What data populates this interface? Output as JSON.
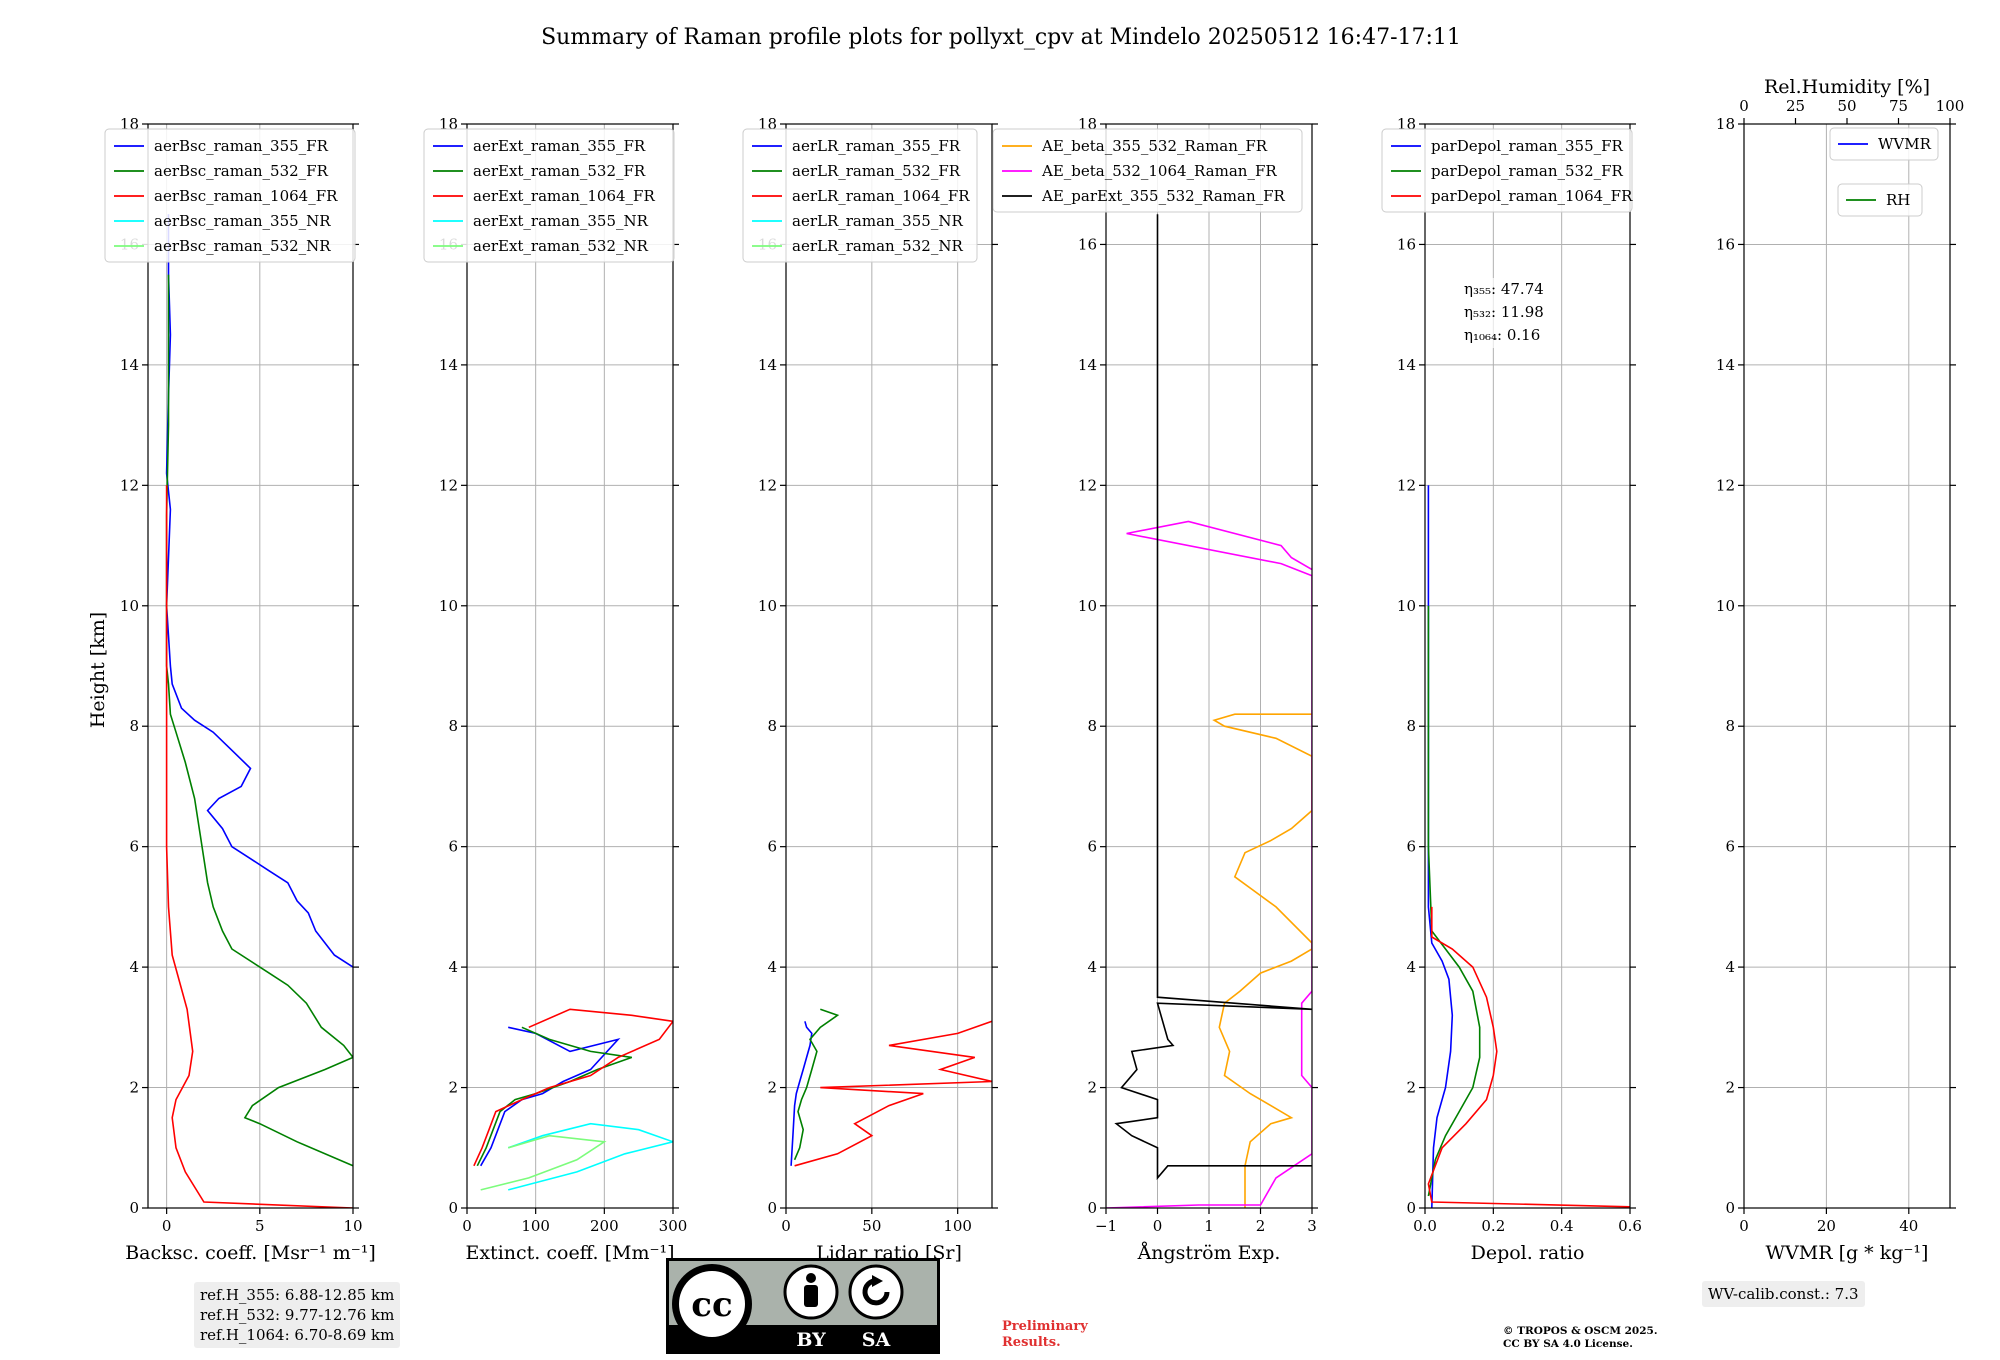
{
  "title": "Summary of Raman profile plots for pollyxt_cpv at Mindelo 20250512 16:47-17:11",
  "ylabel": "Height [km]",
  "y_ticks": [
    "0",
    "2",
    "4",
    "6",
    "8",
    "10",
    "12",
    "14",
    "16",
    "18"
  ],
  "panels": [
    {
      "id": "bsc",
      "xlabel": "Backsc. coeff. [Msr⁻¹ m⁻¹]",
      "xlim": [
        -1,
        10
      ],
      "x_ticks": [
        {
          "v": 0,
          "t": "0"
        },
        {
          "v": 5,
          "t": "5"
        },
        {
          "v": 10,
          "t": "10"
        }
      ],
      "legend": [
        {
          "label": "aerBsc_raman_355_FR",
          "color": "#0000ff"
        },
        {
          "label": "aerBsc_raman_532_FR",
          "color": "#008000"
        },
        {
          "label": "aerBsc_raman_1064_FR",
          "color": "#ff0000"
        },
        {
          "label": "aerBsc_raman_355_NR",
          "color": "#00ffff"
        },
        {
          "label": "aerBsc_raman_532_NR",
          "color": "#7cfc7c"
        }
      ]
    },
    {
      "id": "ext",
      "xlabel": "Extinct. coeff. [Mm⁻¹]",
      "xlim": [
        0,
        300
      ],
      "x_ticks": [
        {
          "v": 0,
          "t": "0"
        },
        {
          "v": 100,
          "t": "100"
        },
        {
          "v": 200,
          "t": "200"
        },
        {
          "v": 300,
          "t": "300"
        }
      ],
      "legend": [
        {
          "label": "aerExt_raman_355_FR",
          "color": "#0000ff"
        },
        {
          "label": "aerExt_raman_532_FR",
          "color": "#008000"
        },
        {
          "label": "aerExt_raman_1064_FR",
          "color": "#ff0000"
        },
        {
          "label": "aerExt_raman_355_NR",
          "color": "#00ffff"
        },
        {
          "label": "aerExt_raman_532_NR",
          "color": "#7cfc7c"
        }
      ]
    },
    {
      "id": "lr",
      "xlabel": "Lidar ratio [Sr]",
      "xlim": [
        0,
        120
      ],
      "x_ticks": [
        {
          "v": 0,
          "t": "0"
        },
        {
          "v": 50,
          "t": "50"
        },
        {
          "v": 100,
          "t": "100"
        }
      ],
      "legend": [
        {
          "label": "aerLR_raman_355_FR",
          "color": "#0000ff"
        },
        {
          "label": "aerLR_raman_532_FR",
          "color": "#008000"
        },
        {
          "label": "aerLR_raman_1064_FR",
          "color": "#ff0000"
        },
        {
          "label": "aerLR_raman_355_NR",
          "color": "#00ffff"
        },
        {
          "label": "aerLR_raman_532_NR",
          "color": "#7cfc7c"
        }
      ]
    },
    {
      "id": "ae",
      "xlabel": "Ångström Exp.",
      "xlim": [
        -1,
        3
      ],
      "x_ticks": [
        {
          "v": -1,
          "t": "−1"
        },
        {
          "v": 0,
          "t": "0"
        },
        {
          "v": 1,
          "t": "1"
        },
        {
          "v": 2,
          "t": "2"
        },
        {
          "v": 3,
          "t": "3"
        }
      ],
      "legend": [
        {
          "label": "AE_beta_355_532_Raman_FR",
          "color": "#ffa500"
        },
        {
          "label": "AE_beta_532_1064_Raman_FR",
          "color": "#ff00ff"
        },
        {
          "label": "AE_parExt_355_532_Raman_FR",
          "color": "#000000"
        }
      ]
    },
    {
      "id": "dep",
      "xlabel": "Depol. ratio",
      "xlim": [
        0,
        0.6
      ],
      "x_ticks": [
        {
          "v": 0,
          "t": "0.0"
        },
        {
          "v": 0.2,
          "t": "0.2"
        },
        {
          "v": 0.4,
          "t": "0.4"
        },
        {
          "v": 0.6,
          "t": "0.6"
        }
      ],
      "legend": [
        {
          "label": "parDepol_raman_355_FR",
          "color": "#0000ff"
        },
        {
          "label": "parDepol_raman_532_FR",
          "color": "#008000"
        },
        {
          "label": "parDepol_raman_1064_FR",
          "color": "#ff0000"
        }
      ]
    },
    {
      "id": "wv",
      "xlabel": "WVMR [g * kg⁻¹]",
      "xlim": [
        0,
        50
      ],
      "x_ticks": [
        {
          "v": 0,
          "t": "0"
        },
        {
          "v": 20,
          "t": "20"
        },
        {
          "v": 40,
          "t": "40"
        }
      ],
      "top_label": "Rel.Humidity [%]",
      "top_ticks": [
        "0",
        "25",
        "50",
        "75",
        "100"
      ],
      "legend": [
        {
          "label": "WVMR",
          "color": "#0000ff"
        },
        {
          "label": "RH",
          "color": "#008000"
        }
      ]
    }
  ],
  "eta_lines": [
    "η₃₅₅: 47.74",
    "η₅₃₂: 11.98",
    "η₁₀₆₄: 0.16"
  ],
  "ref_heights": [
    "ref.H_355: 6.88-12.85 km",
    "ref.H_532: 9.77-12.76 km",
    "ref.H_1064: 6.70-8.69 km"
  ],
  "wv_calib": "WV-calib.const.: 7.3",
  "preliminary": [
    "Preliminary",
    "Results."
  ],
  "copyright": [
    "© TROPOS & OSCM 2025.",
    "CC BY SA 4.0 License."
  ],
  "cc_badge": {
    "cc": "cc",
    "by": "BY",
    "sa": "SA"
  },
  "chart_data": [
    {
      "type": "line",
      "panel": "Backscatter",
      "xlabel": "Backsc. coeff. [Msr⁻¹ m⁻¹]",
      "ylabel": "Height [km]",
      "xlim": [
        -1,
        10
      ],
      "ylim": [
        0,
        18
      ],
      "grid": true,
      "legend": "top-left",
      "series": [
        {
          "name": "aerBsc_raman_355_FR",
          "color": "#0000ff",
          "x": [
            10.0,
            9.0,
            8.0,
            7.6,
            7.0,
            6.5,
            5.5,
            4.5,
            3.5,
            3.0,
            2.2,
            2.8,
            4.0,
            4.5,
            3.5,
            2.5,
            1.5,
            0.8,
            0.3,
            0.2,
            0.0,
            0.1,
            0.2,
            0.0,
            0.1,
            0.2,
            0.1,
            0.1
          ],
          "y": [
            4.0,
            4.2,
            4.6,
            4.9,
            5.1,
            5.4,
            5.6,
            5.8,
            6.0,
            6.3,
            6.6,
            6.8,
            7.0,
            7.3,
            7.6,
            7.9,
            8.1,
            8.3,
            8.7,
            9.0,
            10.0,
            10.8,
            11.6,
            12.2,
            13.5,
            14.5,
            15.5,
            16.5
          ]
        },
        {
          "name": "aerBsc_raman_532_FR",
          "color": "#008000",
          "x": [
            10.0,
            7.0,
            5.0,
            4.2,
            4.6,
            6.0,
            8.5,
            10.0,
            9.5,
            8.3,
            7.5,
            6.5,
            5.5,
            3.5,
            3.0,
            2.5,
            2.2,
            2.0,
            1.8,
            1.5,
            1.0,
            0.5,
            0.2,
            0.1,
            0.0,
            0.0,
            0.0,
            0.1,
            0.1
          ],
          "y": [
            0.7,
            1.1,
            1.4,
            1.5,
            1.7,
            2.0,
            2.3,
            2.5,
            2.7,
            3.0,
            3.4,
            3.7,
            3.9,
            4.3,
            4.6,
            5.0,
            5.4,
            5.8,
            6.2,
            6.8,
            7.4,
            7.9,
            8.2,
            8.7,
            9.0,
            10.0,
            11.5,
            13.0,
            15.5
          ]
        },
        {
          "name": "aerBsc_raman_1064_FR",
          "color": "#ff0000",
          "x": [
            10.0,
            2.0,
            1.0,
            0.5,
            0.3,
            0.5,
            1.2,
            1.4,
            1.1,
            0.3,
            0.1,
            0.0,
            0.0,
            0.0,
            0.0,
            0.0
          ],
          "y": [
            0.0,
            0.1,
            0.6,
            1.0,
            1.5,
            1.8,
            2.2,
            2.6,
            3.3,
            4.2,
            5.0,
            6.0,
            7.0,
            8.0,
            10.0,
            12.0
          ]
        }
      ]
    },
    {
      "type": "line",
      "panel": "Extinction",
      "xlabel": "Extinct. coeff. [Mm⁻¹]",
      "ylabel": "Height [km]",
      "xlim": [
        0,
        300
      ],
      "ylim": [
        0,
        18
      ],
      "grid": true,
      "legend": "top-left",
      "series": [
        {
          "name": "aerExt_raman_355_FR",
          "color": "#0000ff",
          "x": [
            20,
            35,
            45,
            55,
            80,
            110,
            140,
            180,
            220,
            150,
            100,
            60
          ],
          "y": [
            0.7,
            1.0,
            1.3,
            1.6,
            1.8,
            1.9,
            2.1,
            2.3,
            2.8,
            2.6,
            2.9,
            3.0
          ]
        },
        {
          "name": "aerExt_raman_532_FR",
          "color": "#008000",
          "x": [
            15,
            28,
            38,
            48,
            70,
            100,
            150,
            190,
            240,
            180,
            120,
            80
          ],
          "y": [
            0.7,
            1.0,
            1.3,
            1.6,
            1.8,
            1.9,
            2.1,
            2.3,
            2.5,
            2.6,
            2.8,
            3.0
          ]
        },
        {
          "name": "aerExt_raman_1064_FR",
          "color": "#ff0000",
          "x": [
            10,
            22,
            32,
            42,
            80,
            120,
            180,
            220,
            280,
            300,
            240,
            150,
            90
          ],
          "y": [
            0.7,
            1.0,
            1.3,
            1.6,
            1.8,
            2.0,
            2.2,
            2.5,
            2.8,
            3.1,
            3.2,
            3.3,
            3.0
          ]
        },
        {
          "name": "aerExt_raman_355_NR",
          "color": "#00ffff",
          "x": [
            60,
            160,
            230,
            300,
            250,
            180,
            110,
            60
          ],
          "y": [
            0.3,
            0.6,
            0.9,
            1.1,
            1.3,
            1.4,
            1.2,
            1.0
          ]
        },
        {
          "name": "aerExt_raman_532_NR",
          "color": "#7cfc7c",
          "x": [
            20,
            90,
            160,
            200,
            120,
            60
          ],
          "y": [
            0.3,
            0.5,
            0.8,
            1.1,
            1.2,
            1.0
          ]
        }
      ]
    },
    {
      "type": "line",
      "panel": "Lidar ratio",
      "xlabel": "Lidar ratio [Sr]",
      "ylabel": "Height [km]",
      "xlim": [
        0,
        120
      ],
      "ylim": [
        0,
        18
      ],
      "grid": true,
      "legend": "top-left",
      "series": [
        {
          "name": "aerLR_raman_355_FR",
          "color": "#0000ff",
          "x": [
            3,
            4,
            5,
            6,
            8,
            10,
            12,
            14,
            15,
            12,
            11
          ],
          "y": [
            0.7,
            1.2,
            1.7,
            1.9,
            2.1,
            2.3,
            2.5,
            2.7,
            2.9,
            3.0,
            3.1
          ]
        },
        {
          "name": "aerLR_raman_532_FR",
          "color": "#008000",
          "x": [
            5,
            8,
            10,
            7,
            9,
            12,
            15,
            18,
            14,
            20,
            30,
            20
          ],
          "y": [
            0.8,
            1.0,
            1.3,
            1.6,
            1.8,
            2.0,
            2.3,
            2.6,
            2.8,
            3.0,
            3.2,
            3.3
          ]
        },
        {
          "name": "aerLR_raman_1064_FR",
          "color": "#ff0000",
          "x": [
            5,
            30,
            50,
            40,
            60,
            80,
            20,
            120,
            90,
            110,
            60,
            100,
            120
          ],
          "y": [
            0.7,
            0.9,
            1.2,
            1.4,
            1.7,
            1.9,
            2.0,
            2.1,
            2.3,
            2.5,
            2.7,
            2.9,
            3.1
          ]
        }
      ]
    },
    {
      "type": "line",
      "panel": "Angstrom exponent",
      "xlabel": "Ångström Exp.",
      "ylabel": "Height [km]",
      "xlim": [
        -1,
        3
      ],
      "ylim": [
        0,
        18
      ],
      "grid": true,
      "legend": "top-right",
      "series": [
        {
          "name": "AE_beta_355_532_Raman_FR",
          "color": "#ffa500",
          "x": [
            1.7,
            1.7,
            1.8,
            2.2,
            2.6,
            2.2,
            1.8,
            1.3,
            1.4,
            1.2,
            1.3,
            1.6,
            2.0,
            2.6,
            3.0,
            3.0,
            2.3,
            1.5,
            1.7,
            2.2,
            2.6,
            3.0,
            3.0,
            2.3,
            1.3,
            1.1,
            1.5,
            2.2,
            3.0
          ],
          "y": [
            0.0,
            0.7,
            1.1,
            1.4,
            1.5,
            1.7,
            1.9,
            2.2,
            2.6,
            3.0,
            3.4,
            3.6,
            3.9,
            4.1,
            4.3,
            4.4,
            5.0,
            5.5,
            5.9,
            6.1,
            6.3,
            6.6,
            7.5,
            7.8,
            8.0,
            8.1,
            8.2,
            8.2,
            8.2
          ]
        },
        {
          "name": "AE_beta_532_1064_Raman_FR",
          "color": "#ff00ff",
          "x": [
            -1.0,
            0.8,
            2.0,
            2.3,
            3.0,
            3.0,
            2.8,
            2.8,
            3.0,
            3.0,
            2.4,
            -0.6,
            0.6,
            2.4,
            2.6,
            3.0
          ],
          "y": [
            0.0,
            0.05,
            0.05,
            0.5,
            0.9,
            2.0,
            2.2,
            3.4,
            3.6,
            10.5,
            10.7,
            11.2,
            11.4,
            11.0,
            10.8,
            10.6
          ]
        },
        {
          "name": "AE_parExt_355_532_Raman_FR",
          "color": "#000000",
          "x": [
            3.0,
            0.2,
            0.0,
            0.0,
            -0.5,
            -0.8,
            0.0,
            0.0,
            -0.7,
            -0.4,
            -0.5,
            0.3,
            0.2,
            0.0,
            0.0,
            3.0,
            0.0,
            0.0,
            0.0
          ],
          "y": [
            0.7,
            0.7,
            0.5,
            1.0,
            1.2,
            1.4,
            1.5,
            1.8,
            2.0,
            2.3,
            2.6,
            2.7,
            2.8,
            3.4,
            3.4,
            3.3,
            3.5,
            10.0,
            16.5
          ]
        }
      ]
    },
    {
      "type": "line",
      "panel": "Depolarization ratio",
      "xlabel": "Depol. ratio",
      "ylabel": "Height [km]",
      "xlim": [
        0,
        0.6
      ],
      "ylim": [
        0,
        18
      ],
      "grid": true,
      "legend": "top-left",
      "series": [
        {
          "name": "parDepol_raman_355_FR",
          "color": "#0000ff",
          "x": [
            0.02,
            0.025,
            0.035,
            0.06,
            0.075,
            0.08,
            0.07,
            0.05,
            0.02,
            0.01,
            0.01,
            0.01
          ],
          "y": [
            0.0,
            1.0,
            1.5,
            2.0,
            2.6,
            3.2,
            3.8,
            4.1,
            4.4,
            5.0,
            8.0,
            12.0
          ]
        },
        {
          "name": "parDepol_raman_532_FR",
          "color": "#008000",
          "x": [
            0.01,
            0.03,
            0.06,
            0.1,
            0.14,
            0.16,
            0.16,
            0.14,
            0.1,
            0.06,
            0.02,
            0.01,
            0.01
          ],
          "y": [
            0.2,
            0.8,
            1.2,
            1.6,
            2.0,
            2.5,
            3.0,
            3.6,
            4.0,
            4.3,
            4.6,
            6.0,
            10.0
          ]
        },
        {
          "name": "parDepol_raman_1064_FR",
          "color": "#ff0000",
          "x": [
            0.6,
            0.02,
            0.01,
            0.05,
            0.12,
            0.18,
            0.2,
            0.21,
            0.2,
            0.18,
            0.14,
            0.08,
            0.02,
            0.02
          ],
          "y": [
            0.02,
            0.1,
            0.4,
            1.0,
            1.4,
            1.8,
            2.2,
            2.6,
            3.0,
            3.5,
            4.0,
            4.3,
            4.5,
            5.0
          ]
        }
      ]
    }
  ]
}
